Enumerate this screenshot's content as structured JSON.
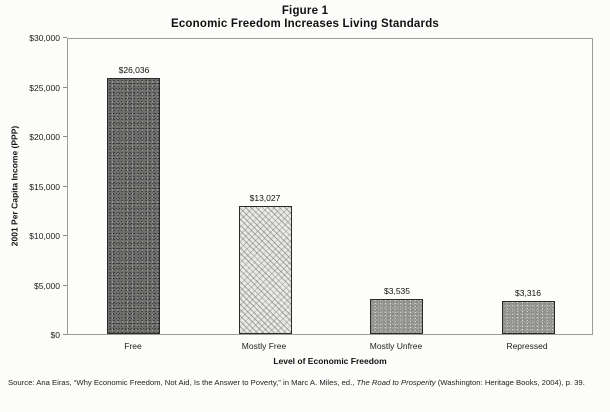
{
  "figure": {
    "title_line1": "Figure 1",
    "title_line2": "Economic Freedom Increases Living Standards"
  },
  "chart_data": {
    "type": "bar",
    "title": "Economic Freedom Increases Living Standards",
    "categories": [
      "Free",
      "Mostly Free",
      "Mostly Unfree",
      "Repressed"
    ],
    "values": [
      26036,
      13027,
      3535,
      3316
    ],
    "value_labels": [
      "$26,036",
      "$13,027",
      "$3,535",
      "$3,316"
    ],
    "bar_textures": [
      "dark-speckle",
      "light-hatch",
      "medium-speckle",
      "medium-speckle"
    ],
    "xlabel": "Level of Economic Freedom",
    "ylabel": "2001 Per Capita Income (PPP)",
    "ylim": [
      0,
      30000
    ],
    "y_tick_step": 5000,
    "y_tick_labels": [
      "$0",
      "$5,000",
      "$10,000",
      "$15,000",
      "$20,000",
      "$25,000",
      "$30,000"
    ],
    "grid": false,
    "legend": "none"
  },
  "source_note": {
    "prefix": "Source: Ana Eiras, “Why Economic Freedom, Not Aid, Is the Answer to Poverty,” in Marc A. Miles, ed., ",
    "italic": "The Road to Prosperity",
    "suffix": " (Washington: Heritage Books, 2004), p. 39."
  }
}
